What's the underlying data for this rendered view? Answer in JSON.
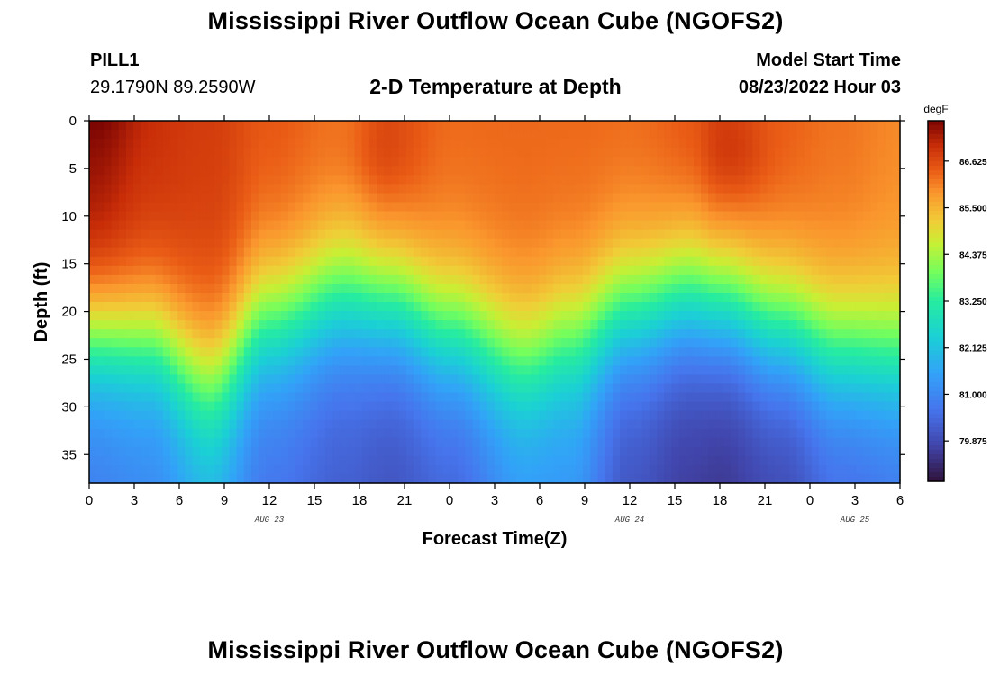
{
  "header": {
    "title": "Mississippi River Outflow Ocean Cube (NGOFS2)",
    "station": "PILL1",
    "coords": "29.1790N  89.2590W",
    "subtitle": "2-D Temperature at Depth",
    "start_label": "Model Start Time",
    "start_value": "08/23/2022 Hour 03"
  },
  "footer": {
    "title": "Mississippi River Outflow Ocean Cube (NGOFS2)"
  },
  "chart_data": {
    "type": "heatmap",
    "title": "2-D Temperature at Depth",
    "xlabel": "Forecast Time(Z)",
    "ylabel": "Depth (ft)",
    "units": "degF",
    "x_range": [
      0,
      54
    ],
    "x_tick_values": [
      0,
      3,
      6,
      9,
      12,
      15,
      18,
      21,
      24,
      27,
      30,
      33,
      36,
      39,
      42,
      45,
      48,
      51,
      54
    ],
    "x_tick_labels": [
      "0",
      "3",
      "6",
      "9",
      "12",
      "15",
      "18",
      "21",
      "0",
      "3",
      "6",
      "9",
      "12",
      "15",
      "18",
      "21",
      "0",
      "3",
      "6"
    ],
    "date_labels": [
      {
        "text": "AUG 23",
        "x": 12
      },
      {
        "text": "AUG 24",
        "x": 36
      },
      {
        "text": "AUG 25",
        "x": 51
      }
    ],
    "y_range": [
      0,
      38
    ],
    "y_reversed": true,
    "y_ticks": [
      0,
      5,
      10,
      15,
      20,
      25,
      30,
      35
    ],
    "colorbar": {
      "min": 78.9,
      "max": 87.6,
      "ticks": [
        86.625,
        85.5,
        84.375,
        83.25,
        82.125,
        81.0,
        79.875
      ],
      "tick_labels": [
        "86.625",
        "85.500",
        "84.375",
        "83.250",
        "82.125",
        "81.000",
        "79.875"
      ]
    },
    "profile_keys": [
      {
        "t": 0,
        "thermocline_ft": 22.5,
        "top_temp": 87.3,
        "bottom_temp": 80.8,
        "width_ft": 4
      },
      {
        "t": 4,
        "thermocline_ft": 23,
        "top_temp": 86.9,
        "bottom_temp": 81.0,
        "width_ft": 4
      },
      {
        "t": 8,
        "thermocline_ft": 27,
        "top_temp": 86.8,
        "bottom_temp": 81.6,
        "width_ft": 4.5
      },
      {
        "t": 12,
        "thermocline_ft": 21,
        "top_temp": 86.5,
        "bottom_temp": 80.6,
        "width_ft": 4.5
      },
      {
        "t": 17,
        "thermocline_ft": 18.5,
        "top_temp": 86.2,
        "bottom_temp": 80.2,
        "width_ft": 4.5
      },
      {
        "t": 20,
        "thermocline_ft": 19,
        "top_temp": 86.6,
        "bottom_temp": 80.0,
        "width_ft": 4.5
      },
      {
        "t": 24,
        "thermocline_ft": 22,
        "top_temp": 86.3,
        "bottom_temp": 80.3,
        "width_ft": 4.5
      },
      {
        "t": 29,
        "thermocline_ft": 25,
        "top_temp": 86.3,
        "bottom_temp": 81.2,
        "width_ft": 4.5
      },
      {
        "t": 32,
        "thermocline_ft": 23,
        "top_temp": 86.3,
        "bottom_temp": 81.2,
        "width_ft": 4.5
      },
      {
        "t": 36,
        "thermocline_ft": 20,
        "top_temp": 86.3,
        "bottom_temp": 80.0,
        "width_ft": 4.5
      },
      {
        "t": 40,
        "thermocline_ft": 18.5,
        "top_temp": 86.5,
        "bottom_temp": 79.6,
        "width_ft": 4.5
      },
      {
        "t": 42,
        "thermocline_ft": 19,
        "top_temp": 86.7,
        "bottom_temp": 79.5,
        "width_ft": 4.5
      },
      {
        "t": 46,
        "thermocline_ft": 21.5,
        "top_temp": 86.4,
        "bottom_temp": 79.8,
        "width_ft": 4.5
      },
      {
        "t": 50,
        "thermocline_ft": 24,
        "top_temp": 86.2,
        "bottom_temp": 80.4,
        "width_ft": 4.5
      },
      {
        "t": 54,
        "thermocline_ft": 24.5,
        "top_temp": 86.0,
        "bottom_temp": 80.6,
        "width_ft": 4.5
      }
    ]
  }
}
